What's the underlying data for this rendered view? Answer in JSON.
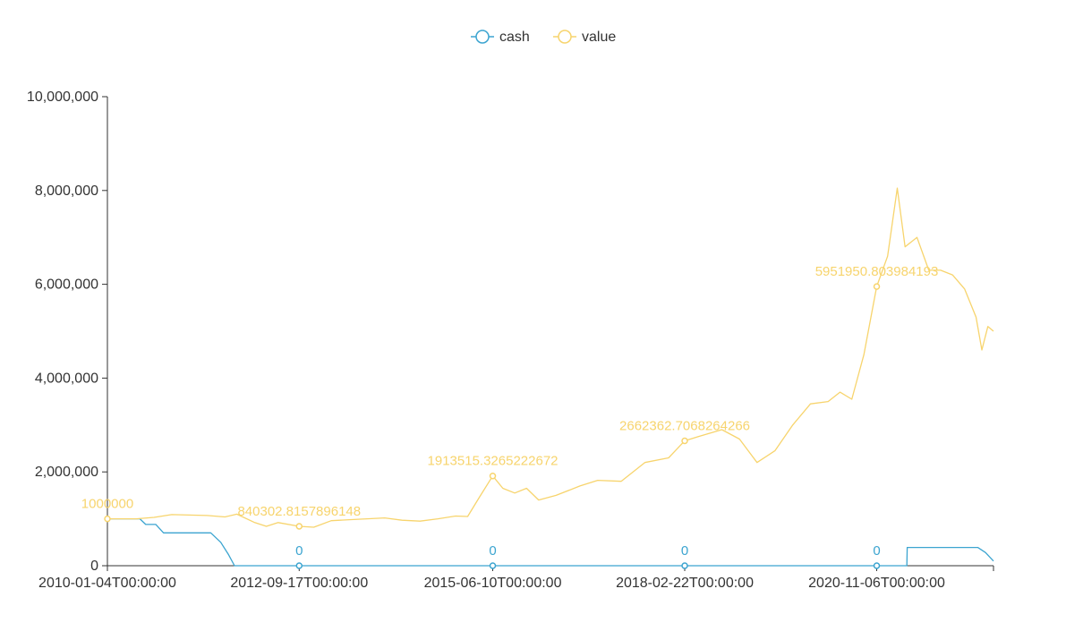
{
  "chart_data": {
    "type": "line",
    "legend": {
      "position": "top-center"
    },
    "x_ticks": [
      "2010-01-04T00:00:00",
      "2012-09-17T00:00:00",
      "2015-06-10T00:00:00",
      "2018-02-22T00:00:00",
      "2020-11-06T00:00:00"
    ],
    "x_range": [
      "2010-01-04",
      "2022-06-30"
    ],
    "y_ticks": [
      "0",
      "2,000,000",
      "4,000,000",
      "6,000,000",
      "8,000,000",
      "10,000,000"
    ],
    "ylim": [
      0,
      10000000
    ],
    "grid": false,
    "series": [
      {
        "name": "cash",
        "color": "#3ba4d0",
        "points": [
          [
            "2010-01-04",
            1000000
          ],
          [
            "2010-06-20",
            1000000
          ],
          [
            "2010-07-20",
            880000
          ],
          [
            "2010-09-10",
            880000
          ],
          [
            "2010-10-20",
            700000
          ],
          [
            "2011-06-20",
            700000
          ],
          [
            "2011-08-10",
            500000
          ],
          [
            "2011-09-20",
            230000
          ],
          [
            "2011-10-20",
            0
          ],
          [
            "2021-04-10",
            0
          ],
          [
            "2021-04-12",
            390000
          ],
          [
            "2022-04-10",
            390000
          ],
          [
            "2022-05-20",
            280000
          ],
          [
            "2022-06-30",
            100000
          ]
        ],
        "labeled_points": [
          {
            "x": "2012-09-17",
            "y": 0,
            "label": "0"
          },
          {
            "x": "2015-06-10",
            "y": 0,
            "label": "0"
          },
          {
            "x": "2018-02-22",
            "y": 0,
            "label": "0"
          },
          {
            "x": "2020-11-06",
            "y": 0,
            "label": "0"
          }
        ]
      },
      {
        "name": "value",
        "color": "#f7d46d",
        "points": [
          [
            "2010-01-04",
            1000000
          ],
          [
            "2010-06-01",
            1000000
          ],
          [
            "2010-09-01",
            1030000
          ],
          [
            "2010-12-01",
            1090000
          ],
          [
            "2011-03-01",
            1080000
          ],
          [
            "2011-06-01",
            1070000
          ],
          [
            "2011-09-01",
            1040000
          ],
          [
            "2011-11-01",
            1100000
          ],
          [
            "2012-02-01",
            920000
          ],
          [
            "2012-04-01",
            840000
          ],
          [
            "2012-06-01",
            920000
          ],
          [
            "2012-09-17",
            840302
          ],
          [
            "2012-12-01",
            820000
          ],
          [
            "2013-03-01",
            960000
          ],
          [
            "2013-06-01",
            980000
          ],
          [
            "2013-09-01",
            1000000
          ],
          [
            "2013-12-01",
            1020000
          ],
          [
            "2014-03-01",
            970000
          ],
          [
            "2014-06-01",
            950000
          ],
          [
            "2014-09-01",
            1000000
          ],
          [
            "2014-12-01",
            1060000
          ],
          [
            "2015-02-01",
            1050000
          ],
          [
            "2015-04-01",
            1450000
          ],
          [
            "2015-06-10",
            1913515
          ],
          [
            "2015-08-01",
            1650000
          ],
          [
            "2015-10-01",
            1550000
          ],
          [
            "2015-12-01",
            1650000
          ],
          [
            "2016-02-01",
            1400000
          ],
          [
            "2016-05-01",
            1500000
          ],
          [
            "2016-09-01",
            1700000
          ],
          [
            "2016-12-01",
            1820000
          ],
          [
            "2017-04-01",
            1800000
          ],
          [
            "2017-08-01",
            2200000
          ],
          [
            "2017-12-01",
            2300000
          ],
          [
            "2018-02-22",
            2662362
          ],
          [
            "2018-05-01",
            2750000
          ],
          [
            "2018-09-01",
            2900000
          ],
          [
            "2018-12-01",
            2700000
          ],
          [
            "2019-03-01",
            2200000
          ],
          [
            "2019-06-01",
            2450000
          ],
          [
            "2019-09-01",
            3000000
          ],
          [
            "2019-12-01",
            3450000
          ],
          [
            "2020-03-01",
            3500000
          ],
          [
            "2020-05-01",
            3700000
          ],
          [
            "2020-07-01",
            3550000
          ],
          [
            "2020-09-01",
            4500000
          ],
          [
            "2020-11-06",
            5951950
          ],
          [
            "2021-01-01",
            6600000
          ],
          [
            "2021-02-20",
            8050000
          ],
          [
            "2021-04-01",
            6800000
          ],
          [
            "2021-06-01",
            7000000
          ],
          [
            "2021-08-01",
            6300000
          ],
          [
            "2021-10-01",
            6300000
          ],
          [
            "2021-12-01",
            6200000
          ],
          [
            "2022-02-01",
            5900000
          ],
          [
            "2022-04-01",
            5300000
          ],
          [
            "2022-05-01",
            4600000
          ],
          [
            "2022-06-01",
            5100000
          ],
          [
            "2022-06-30",
            5000000
          ]
        ],
        "labeled_points": [
          {
            "x": "2010-01-04",
            "y": 1000000,
            "label": "1000000"
          },
          {
            "x": "2012-09-17",
            "y": 840302.8157896148,
            "label": "840302.8157896148"
          },
          {
            "x": "2015-06-10",
            "y": 1913515.3265222672,
            "label": "1913515.3265222672"
          },
          {
            "x": "2018-02-22",
            "y": 2662362.7068264266,
            "label": "2662362.7068264266"
          },
          {
            "x": "2020-11-06",
            "y": 5951950.803984193,
            "label": "5951950.803984193"
          }
        ]
      }
    ]
  }
}
